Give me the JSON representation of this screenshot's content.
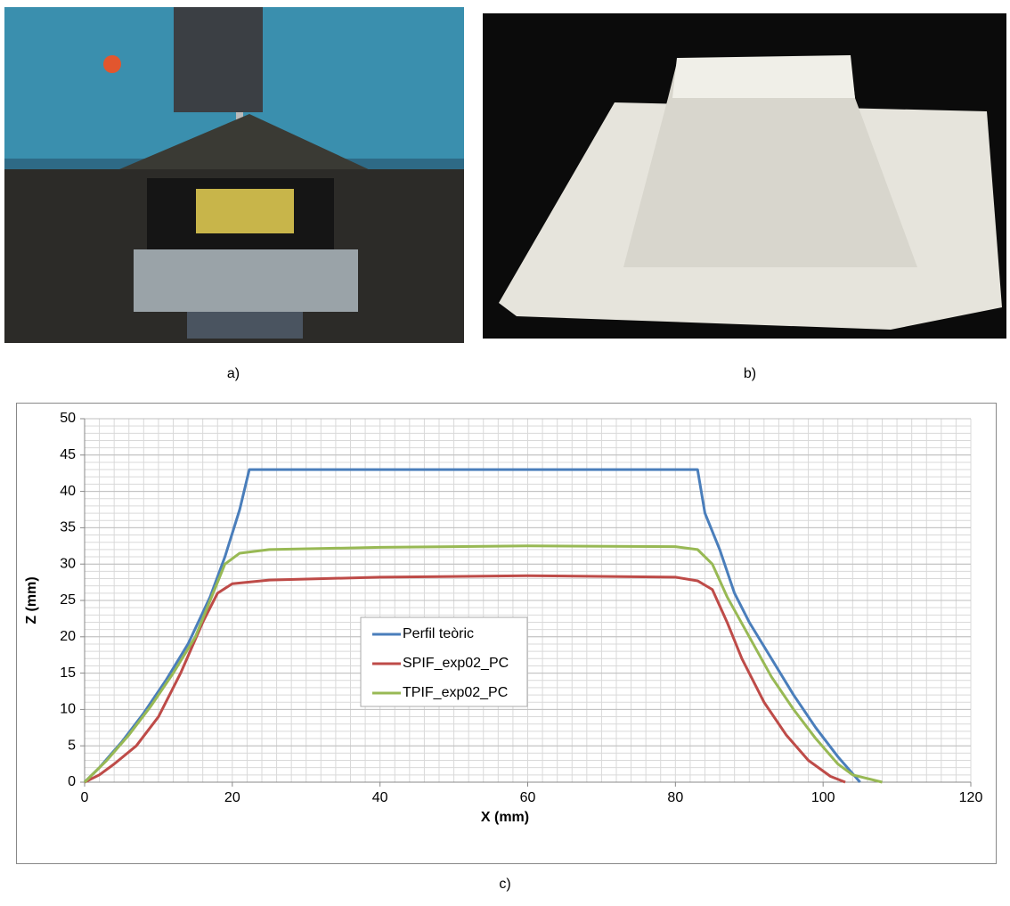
{
  "panel_labels": [
    "a)",
    "b)",
    "c)"
  ],
  "chart_data": {
    "type": "line",
    "x_label": "X (mm)",
    "y_label": "Z (mm)",
    "xlim": [
      0,
      120
    ],
    "xticks": [
      0,
      20,
      40,
      60,
      80,
      100,
      120
    ],
    "ylim": [
      0,
      50
    ],
    "yticks": [
      0,
      5,
      10,
      15,
      20,
      25,
      30,
      35,
      40,
      45,
      50
    ],
    "grid": true,
    "minor_grid_step": {
      "x": 2,
      "y": 1
    },
    "legend": "center",
    "series": [
      {
        "name": "Perfil teòric",
        "color": "#4a7ebb",
        "x": [
          0,
          2,
          5,
          8,
          11,
          14,
          17,
          19,
          21,
          22.3,
          83,
          84,
          86,
          88,
          90,
          93,
          96,
          99,
          102,
          105
        ],
        "values": [
          0,
          2,
          5.5,
          9.5,
          14,
          19,
          25.5,
          31,
          37.5,
          43,
          43,
          37,
          32,
          26,
          22,
          17,
          12,
          7.5,
          3.5,
          0
        ]
      },
      {
        "name": "SPIF_exp02_PC",
        "color": "#be4b48",
        "x": [
          0,
          2,
          4,
          7,
          10,
          13,
          16,
          18,
          20,
          25,
          40,
          60,
          80,
          83,
          85,
          87,
          89,
          92,
          95,
          98,
          101,
          103
        ],
        "values": [
          0,
          1,
          2.5,
          5,
          9,
          15,
          22,
          26,
          27.3,
          27.8,
          28.2,
          28.4,
          28.2,
          27.7,
          26.5,
          22,
          17,
          11,
          6.5,
          3,
          0.8,
          0
        ]
      },
      {
        "name": "TPIF_exp02_PC",
        "color": "#98b954",
        "x": [
          0,
          3,
          6,
          9,
          12,
          15,
          17,
          19,
          21,
          25,
          40,
          60,
          80,
          83,
          85,
          87,
          90,
          93,
          96,
          99,
          102,
          104,
          108
        ],
        "values": [
          0,
          3,
          6.5,
          10.5,
          15,
          20,
          25,
          30,
          31.5,
          32,
          32.3,
          32.5,
          32.4,
          32,
          30,
          25.5,
          20,
          14.5,
          10,
          6,
          2.5,
          1,
          0
        ]
      }
    ]
  }
}
